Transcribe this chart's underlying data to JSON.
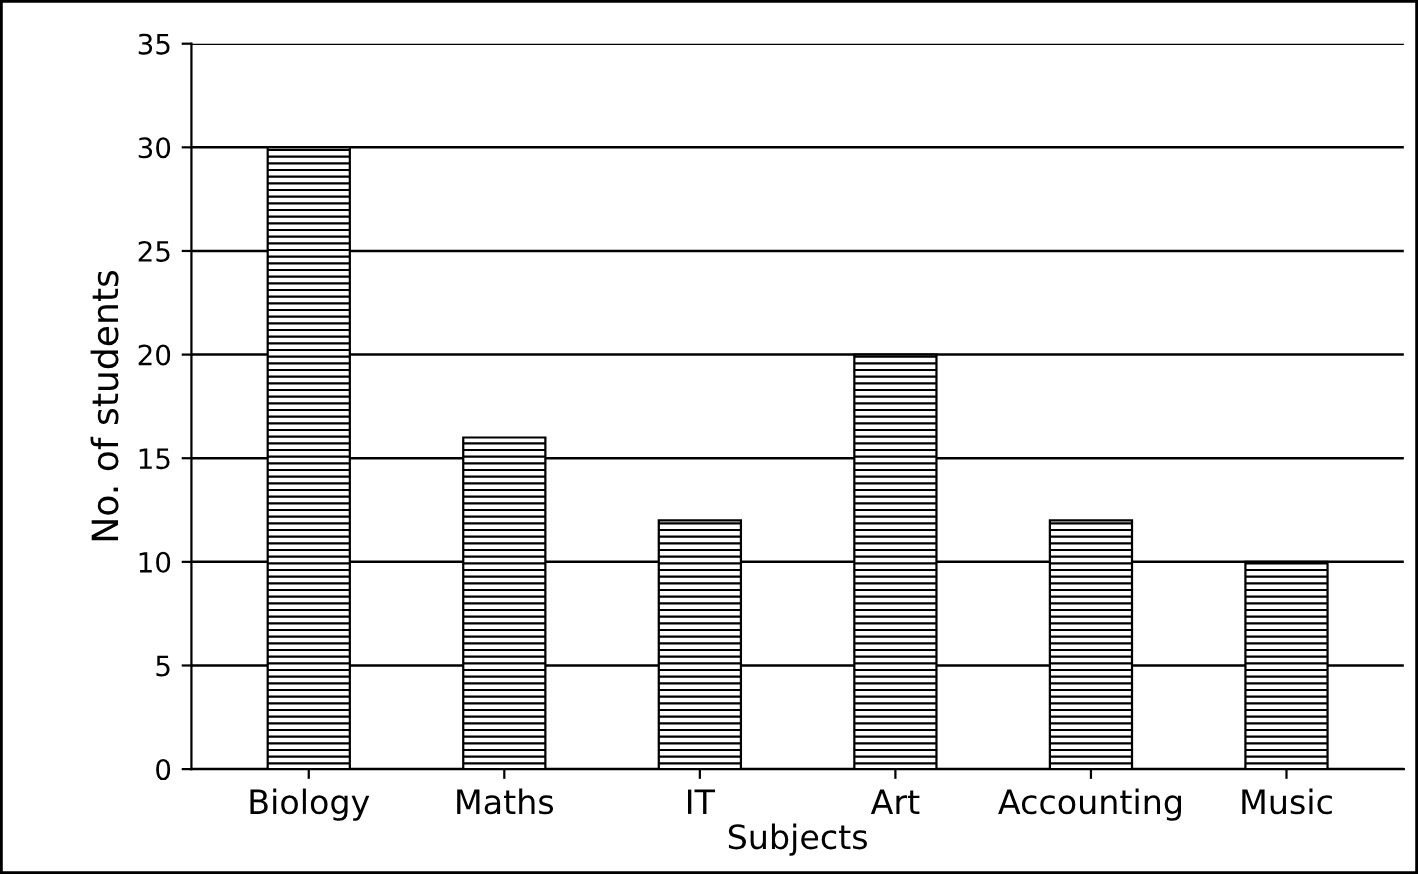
{
  "chart_data": {
    "type": "bar",
    "xlabel": "Subjects",
    "ylabel": "No. of students",
    "categories": [
      "Biology",
      "Maths",
      "IT",
      "Art",
      "Accounting",
      "Music"
    ],
    "values": [
      30,
      16,
      12,
      20,
      12,
      10
    ],
    "color": "#000000",
    "ylim": [
      0,
      35
    ],
    "yticks": [
      0,
      5,
      10,
      15,
      20,
      25,
      30,
      35
    ],
    "grid": "y",
    "legend": false
  }
}
